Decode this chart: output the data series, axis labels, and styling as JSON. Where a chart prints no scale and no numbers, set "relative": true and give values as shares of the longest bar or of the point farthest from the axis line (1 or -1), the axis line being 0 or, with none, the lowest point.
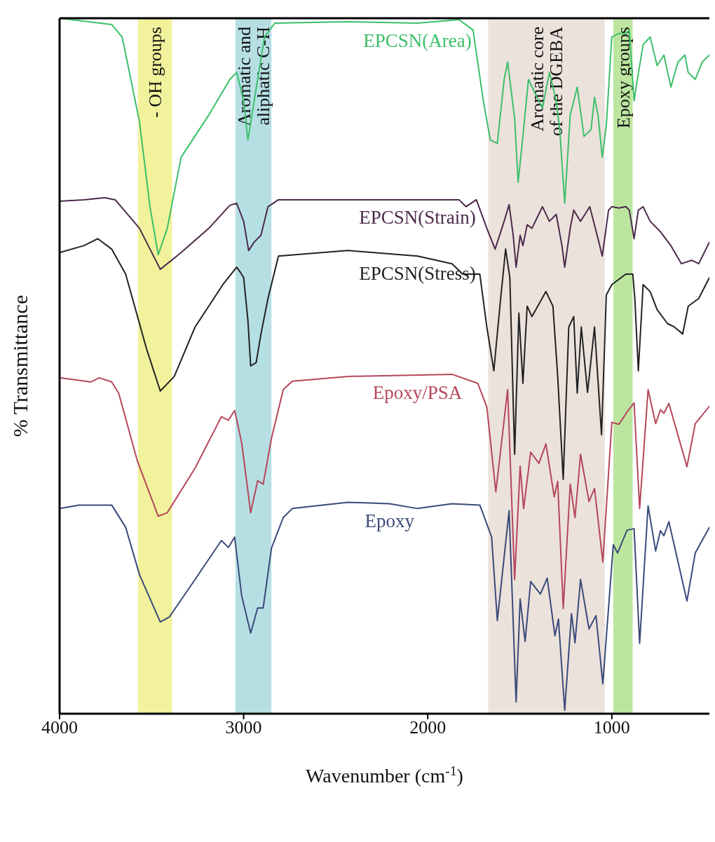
{
  "chart_data": {
    "type": "line",
    "relative": true,
    "xlabel": "Wavenumber (cm$^{-1}$)",
    "ylabel": "% Transmittance",
    "xlim": [
      4000,
      470
    ],
    "xticks": [
      4000,
      3000,
      2000,
      1000
    ],
    "grid": false,
    "legend": false,
    "marker": "none",
    "line_style": "solid",
    "bands": [
      {
        "axis": "x",
        "from": 3574,
        "to": 3389,
        "label": "- OH groups",
        "color": "#eef08a"
      },
      {
        "axis": "x",
        "from": 3045,
        "to": 2849,
        "label": "Aromatic and\naliphatic C-H",
        "color": "#a9d9df"
      },
      {
        "axis": "x",
        "from": 1672,
        "to": 1038,
        "label": "Aromatic core\nof the DGEBA",
        "color": "#e9ddd6"
      },
      {
        "axis": "x",
        "from": 992,
        "to": 887,
        "label": "Epoxy groups",
        "color": "#b0e28e"
      }
    ],
    "series": [
      {
        "name": "EPCSN(Area)",
        "color": "#3dbf6a",
        "x": [
          4000,
          3717,
          3660,
          3566,
          3509,
          3464,
          3415,
          3340,
          3189,
          3075,
          3038,
          3000,
          2977,
          2943,
          2887,
          2830,
          2434,
          2056,
          1830,
          1754,
          1698,
          1660,
          1622,
          1585,
          1566,
          1528,
          1509,
          1483,
          1453,
          1415,
          1377,
          1339,
          1302,
          1283,
          1256,
          1226,
          1188,
          1151,
          1113,
          1094,
          1075,
          1052,
          1030,
          1000,
          962,
          924,
          905,
          879,
          868,
          830,
          792,
          754,
          717,
          679,
          641,
          603,
          585,
          547,
          509,
          470
        ],
        "values": [
          1.0,
          0.991,
          0.973,
          0.851,
          0.729,
          0.66,
          0.698,
          0.8,
          0.861,
          0.912,
          0.922,
          0.881,
          0.825,
          0.881,
          0.973,
          0.993,
          0.995,
          0.993,
          0.998,
          0.983,
          0.881,
          0.825,
          0.82,
          0.912,
          0.937,
          0.856,
          0.764,
          0.83,
          0.912,
          0.891,
          0.871,
          0.922,
          0.881,
          0.84,
          0.734,
          0.861,
          0.901,
          0.83,
          0.84,
          0.886,
          0.861,
          0.8,
          0.846,
          0.973,
          0.978,
          0.978,
          0.983,
          0.881,
          0.901,
          0.962,
          0.973,
          0.932,
          0.947,
          0.901,
          0.937,
          0.947,
          0.922,
          0.912,
          0.937,
          0.947
        ]
      },
      {
        "name": "EPCSN(Strain)",
        "color": "#4b2a4b",
        "x": [
          4000,
          3868,
          3755,
          3698,
          3566,
          3453,
          3340,
          3189,
          3075,
          3038,
          3000,
          2973,
          2943,
          2906,
          2868,
          2811,
          2434,
          2056,
          1830,
          1792,
          1736,
          1679,
          1634,
          1585,
          1558,
          1536,
          1520,
          1498,
          1483,
          1460,
          1434,
          1377,
          1339,
          1302,
          1271,
          1256,
          1226,
          1207,
          1170,
          1120,
          1075,
          1052,
          1018,
          1000,
          962,
          924,
          905,
          879,
          856,
          830,
          792,
          736,
          679,
          622,
          566,
          528,
          470
        ],
        "values": [
          0.737,
          0.739,
          0.742,
          0.739,
          0.698,
          0.639,
          0.663,
          0.698,
          0.731,
          0.734,
          0.708,
          0.666,
          0.678,
          0.688,
          0.729,
          0.739,
          0.739,
          0.739,
          0.739,
          0.729,
          0.739,
          0.698,
          0.668,
          0.708,
          0.732,
          0.688,
          0.642,
          0.688,
          0.673,
          0.703,
          0.698,
          0.729,
          0.708,
          0.718,
          0.673,
          0.642,
          0.698,
          0.724,
          0.708,
          0.729,
          0.683,
          0.658,
          0.724,
          0.729,
          0.727,
          0.729,
          0.724,
          0.683,
          0.724,
          0.729,
          0.708,
          0.693,
          0.673,
          0.647,
          0.652,
          0.647,
          0.678
        ]
      },
      {
        "name": "EPCSN(Stress)",
        "color": "#222222",
        "x": [
          4000,
          3868,
          3792,
          3717,
          3641,
          3528,
          3453,
          3377,
          3264,
          3113,
          3038,
          3019,
          3000,
          2977,
          2962,
          2932,
          2906,
          2868,
          2811,
          2434,
          2056,
          1868,
          1811,
          1717,
          1679,
          1641,
          1604,
          1577,
          1554,
          1528,
          1505,
          1483,
          1460,
          1434,
          1358,
          1320,
          1294,
          1264,
          1234,
          1207,
          1188,
          1166,
          1132,
          1094,
          1056,
          1030,
          1000,
          924,
          886,
          875,
          856,
          830,
          792,
          754,
          698,
          660,
          615,
          585,
          528,
          470
        ],
        "values": [
          0.663,
          0.673,
          0.683,
          0.668,
          0.632,
          0.525,
          0.464,
          0.485,
          0.556,
          0.617,
          0.642,
          0.635,
          0.627,
          0.566,
          0.5,
          0.505,
          0.546,
          0.597,
          0.658,
          0.666,
          0.658,
          0.647,
          0.632,
          0.632,
          0.556,
          0.493,
          0.597,
          0.668,
          0.627,
          0.373,
          0.576,
          0.475,
          0.586,
          0.571,
          0.607,
          0.586,
          0.485,
          0.337,
          0.556,
          0.571,
          0.461,
          0.556,
          0.462,
          0.556,
          0.401,
          0.602,
          0.617,
          0.632,
          0.632,
          0.597,
          0.493,
          0.617,
          0.607,
          0.581,
          0.561,
          0.556,
          0.546,
          0.586,
          0.597,
          0.627
        ]
      },
      {
        "name": "Epoxy/PSA",
        "color": "#b5475a",
        "x": [
          4000,
          3830,
          3785,
          3717,
          3679,
          3577,
          3464,
          3415,
          3264,
          3121,
          3083,
          3049,
          3011,
          2962,
          2924,
          2894,
          2849,
          2785,
          2736,
          2434,
          2056,
          1868,
          1728,
          1679,
          1630,
          1566,
          1528,
          1498,
          1479,
          1441,
          1396,
          1358,
          1313,
          1294,
          1264,
          1226,
          1200,
          1170,
          1124,
          1094,
          1049,
          1000,
          962,
          917,
          879,
          849,
          803,
          762,
          736,
          717,
          690,
          592,
          547,
          470
        ],
        "values": [
          0.483,
          0.477,
          0.483,
          0.477,
          0.461,
          0.363,
          0.284,
          0.289,
          0.353,
          0.427,
          0.422,
          0.436,
          0.39,
          0.289,
          0.335,
          0.33,
          0.396,
          0.466,
          0.478,
          0.485,
          0.487,
          0.488,
          0.475,
          0.441,
          0.319,
          0.466,
          0.193,
          0.356,
          0.295,
          0.376,
          0.36,
          0.388,
          0.312,
          0.334,
          0.151,
          0.33,
          0.282,
          0.373,
          0.305,
          0.324,
          0.218,
          0.419,
          0.416,
          0.434,
          0.447,
          0.295,
          0.466,
          0.417,
          0.437,
          0.432,
          0.446,
          0.355,
          0.417,
          0.442
        ]
      },
      {
        "name": "Epoxy",
        "color": "#3a4a7a",
        "x": [
          4000,
          3894,
          3717,
          3641,
          3566,
          3453,
          3404,
          3264,
          3121,
          3083,
          3049,
          3011,
          2962,
          2924,
          2894,
          2849,
          2785,
          2736,
          2434,
          2207,
          2056,
          1868,
          1717,
          1653,
          1622,
          1558,
          1520,
          1498,
          1471,
          1441,
          1388,
          1351,
          1309,
          1290,
          1256,
          1219,
          1200,
          1170,
          1124,
          1086,
          1049,
          992,
          969,
          917,
          879,
          849,
          803,
          762,
          736,
          717,
          690,
          592,
          547,
          470
        ],
        "values": [
          0.295,
          0.3,
          0.3,
          0.268,
          0.2,
          0.132,
          0.139,
          0.193,
          0.249,
          0.239,
          0.254,
          0.17,
          0.116,
          0.152,
          0.152,
          0.238,
          0.282,
          0.295,
          0.304,
          0.302,
          0.295,
          0.302,
          0.3,
          0.254,
          0.134,
          0.292,
          0.017,
          0.165,
          0.104,
          0.19,
          0.172,
          0.195,
          0.112,
          0.136,
          0.005,
          0.144,
          0.102,
          0.193,
          0.122,
          0.141,
          0.043,
          0.243,
          0.231,
          0.264,
          0.266,
          0.101,
          0.299,
          0.234,
          0.263,
          0.256,
          0.276,
          0.162,
          0.231,
          0.268
        ]
      }
    ]
  }
}
